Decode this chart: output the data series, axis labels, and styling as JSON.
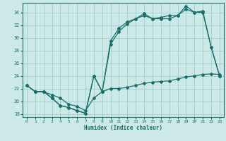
{
  "title": "",
  "xlabel": "Humidex (Indice chaleur)",
  "ylabel": "",
  "bg_color": "#cce9e8",
  "grid_color": "#9ecece",
  "line_color": "#1a6e6e",
  "xlim": [
    -0.5,
    23.5
  ],
  "ylim": [
    17.5,
    35.5
  ],
  "xticks": [
    0,
    1,
    2,
    3,
    4,
    5,
    6,
    7,
    8,
    9,
    10,
    11,
    12,
    13,
    14,
    15,
    16,
    17,
    18,
    19,
    20,
    21,
    22,
    23
  ],
  "xtick_labels": [
    "0",
    "1",
    "2",
    "3",
    "4",
    "5",
    "6",
    "7",
    "8",
    "9",
    "10",
    "11",
    "12",
    "13",
    "14",
    "15",
    "16",
    "17",
    "18",
    "19",
    "20",
    "21",
    "22",
    "23"
  ],
  "yticks": [
    18,
    20,
    22,
    24,
    26,
    28,
    30,
    32,
    34
  ],
  "line1_x": [
    0,
    1,
    2,
    3,
    4,
    5,
    6,
    7,
    8,
    9,
    10,
    11,
    12,
    13,
    14,
    15,
    16,
    17,
    18,
    19,
    20,
    21,
    22,
    23
  ],
  "line1_y": [
    22.5,
    21.5,
    21.5,
    20.5,
    19.3,
    19.0,
    18.5,
    18.1,
    24.0,
    21.5,
    29.5,
    31.5,
    32.5,
    33.0,
    33.8,
    33.0,
    33.2,
    33.5,
    33.5,
    35.0,
    34.0,
    34.0,
    28.5,
    24.0
  ],
  "line2_x": [
    0,
    1,
    2,
    3,
    4,
    5,
    6,
    7,
    8,
    9,
    10,
    11,
    12,
    13,
    14,
    15,
    16,
    17,
    18,
    19,
    20,
    21,
    22,
    23
  ],
  "line2_y": [
    22.5,
    21.5,
    21.5,
    20.5,
    19.3,
    19.0,
    18.5,
    18.1,
    24.0,
    21.5,
    29.0,
    31.0,
    32.2,
    33.0,
    33.5,
    33.0,
    33.0,
    33.0,
    33.5,
    34.5,
    34.0,
    34.2,
    28.5,
    24.0
  ],
  "line3_x": [
    0,
    1,
    2,
    3,
    4,
    5,
    6,
    7,
    8,
    9,
    10,
    11,
    12,
    13,
    14,
    15,
    16,
    17,
    18,
    19,
    20,
    21,
    22,
    23
  ],
  "line3_y": [
    22.5,
    21.5,
    21.5,
    21.0,
    20.5,
    19.5,
    19.2,
    18.5,
    20.5,
    21.5,
    22.0,
    22.0,
    22.2,
    22.5,
    22.8,
    23.0,
    23.1,
    23.2,
    23.5,
    23.8,
    24.0,
    24.2,
    24.3,
    24.2
  ],
  "marker": "D",
  "markersize": 2.0,
  "linewidth": 0.9
}
